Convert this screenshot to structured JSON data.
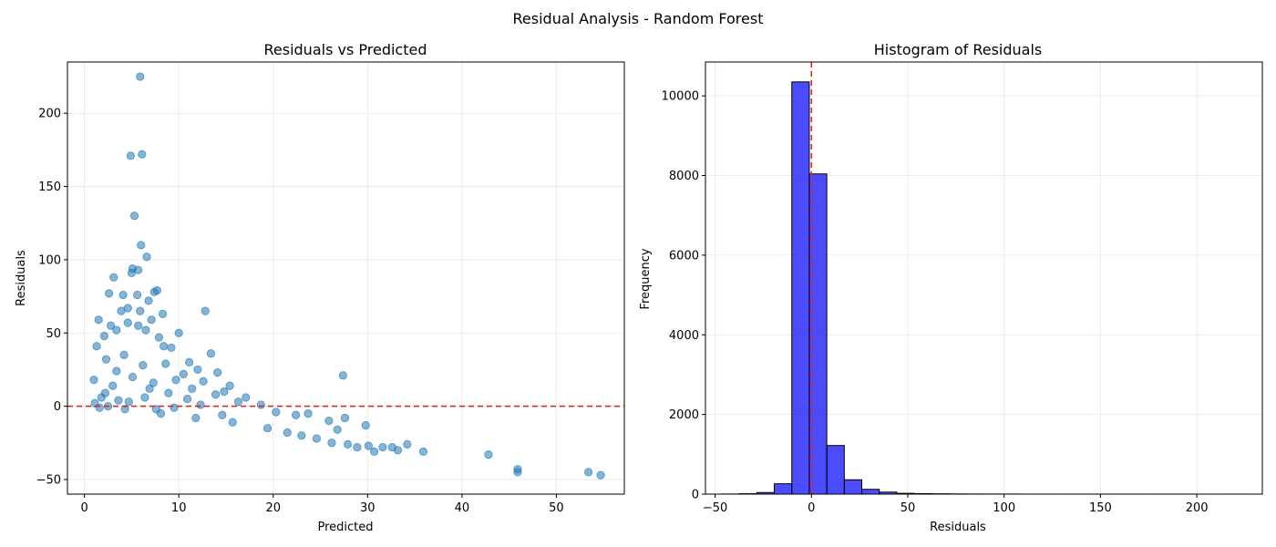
{
  "figure": {
    "suptitle": "Residual Analysis - Random Forest"
  },
  "chart_data": [
    {
      "type": "scatter",
      "title": "Residuals vs Predicted",
      "xlabel": "Predicted",
      "ylabel": "Residuals",
      "xlim": [
        -1.8,
        57.2
      ],
      "ylim": [
        -60,
        235
      ],
      "xticks": [
        0,
        10,
        20,
        30,
        40,
        50
      ],
      "yticks": [
        -50,
        0,
        50,
        100,
        150,
        200
      ],
      "grid": true,
      "color": "#1f77b4",
      "reference_line": {
        "y": 0,
        "color": "#d62728",
        "style": "dashed"
      },
      "points": [
        [
          5.9,
          225
        ],
        [
          4.9,
          171
        ],
        [
          6.1,
          172
        ],
        [
          5.3,
          130
        ],
        [
          6.0,
          110
        ],
        [
          6.6,
          102
        ],
        [
          5.1,
          94
        ],
        [
          5.0,
          91
        ],
        [
          5.7,
          93
        ],
        [
          3.1,
          88
        ],
        [
          7.7,
          79
        ],
        [
          7.4,
          78
        ],
        [
          2.6,
          77
        ],
        [
          4.1,
          76
        ],
        [
          5.6,
          76
        ],
        [
          6.8,
          72
        ],
        [
          4.6,
          67
        ],
        [
          12.8,
          65
        ],
        [
          3.9,
          65
        ],
        [
          5.9,
          65
        ],
        [
          8.3,
          63
        ],
        [
          1.5,
          59
        ],
        [
          7.1,
          59
        ],
        [
          4.6,
          57
        ],
        [
          5.7,
          55
        ],
        [
          2.8,
          55
        ],
        [
          3.4,
          52
        ],
        [
          6.5,
          52
        ],
        [
          10.0,
          50
        ],
        [
          2.1,
          48
        ],
        [
          7.9,
          47
        ],
        [
          1.3,
          41
        ],
        [
          8.4,
          41
        ],
        [
          9.2,
          40
        ],
        [
          13.4,
          36
        ],
        [
          4.2,
          35
        ],
        [
          2.3,
          32
        ],
        [
          11.1,
          30
        ],
        [
          8.6,
          29
        ],
        [
          6.2,
          28
        ],
        [
          12.0,
          25
        ],
        [
          3.4,
          24
        ],
        [
          14.1,
          23
        ],
        [
          10.5,
          22
        ],
        [
          27.4,
          21
        ],
        [
          5.1,
          20
        ],
        [
          1.0,
          18
        ],
        [
          9.7,
          18
        ],
        [
          12.6,
          17
        ],
        [
          7.3,
          16
        ],
        [
          15.4,
          14
        ],
        [
          3.0,
          14
        ],
        [
          11.4,
          12
        ],
        [
          6.9,
          12
        ],
        [
          14.8,
          10
        ],
        [
          2.2,
          9
        ],
        [
          8.9,
          9
        ],
        [
          13.9,
          8
        ],
        [
          17.1,
          6
        ],
        [
          1.8,
          6
        ],
        [
          10.9,
          5
        ],
        [
          16.3,
          3
        ],
        [
          4.7,
          3
        ],
        [
          18.7,
          1
        ],
        [
          12.3,
          1
        ],
        [
          2.5,
          0
        ],
        [
          9.5,
          -1
        ],
        [
          20.3,
          -4
        ],
        [
          7.6,
          -2
        ],
        [
          22.4,
          -6
        ],
        [
          14.6,
          -6
        ],
        [
          23.7,
          -5
        ],
        [
          25.9,
          -10
        ],
        [
          27.6,
          -8
        ],
        [
          29.8,
          -13
        ],
        [
          26.8,
          -16
        ],
        [
          1.1,
          2
        ],
        [
          3.6,
          4
        ],
        [
          6.4,
          6
        ],
        [
          1.6,
          -1
        ],
        [
          4.3,
          -2
        ],
        [
          8.1,
          -5
        ],
        [
          11.8,
          -8
        ],
        [
          15.7,
          -11
        ],
        [
          19.4,
          -15
        ],
        [
          21.5,
          -18
        ],
        [
          23.0,
          -20
        ],
        [
          24.6,
          -22
        ],
        [
          26.2,
          -25
        ],
        [
          27.9,
          -26
        ],
        [
          28.9,
          -28
        ],
        [
          30.1,
          -27
        ],
        [
          31.6,
          -28
        ],
        [
          33.2,
          -30
        ],
        [
          34.2,
          -26
        ],
        [
          35.9,
          -31
        ],
        [
          32.6,
          -28
        ],
        [
          30.7,
          -31
        ],
        [
          42.8,
          -33
        ],
        [
          45.9,
          -43
        ],
        [
          45.9,
          -45
        ],
        [
          53.4,
          -45
        ],
        [
          54.7,
          -47
        ]
      ]
    },
    {
      "type": "bar",
      "title": "Histogram of Residuals",
      "xlabel": "Residuals",
      "ylabel": "Frequency",
      "xlim": [
        -55,
        234
      ],
      "ylim": [
        0,
        10850
      ],
      "xticks": [
        -50,
        0,
        50,
        100,
        150,
        200
      ],
      "yticks": [
        0,
        2000,
        4000,
        6000,
        8000,
        10000
      ],
      "grid": true,
      "bar_color": "#0000ff",
      "bar_edge": "#000000",
      "reference_line": {
        "x": 0,
        "color": "#d62728",
        "style": "dashed"
      },
      "bins_start": -46.5,
      "bin_width": 9.08,
      "values": [
        3,
        10,
        40,
        260,
        10350,
        8040,
        1220,
        360,
        120,
        50,
        20,
        12,
        8,
        5,
        3,
        2,
        2,
        1,
        1,
        1,
        1,
        1,
        1,
        1,
        1,
        1,
        1,
        0,
        0,
        1
      ]
    }
  ]
}
